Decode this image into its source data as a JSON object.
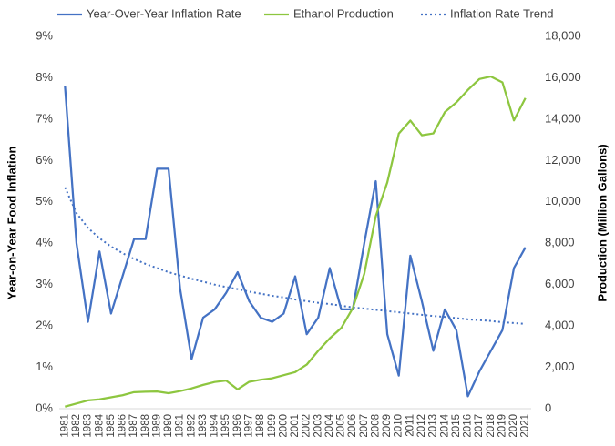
{
  "chart_data": {
    "type": "line",
    "y_label": "Year-on-Year Food Inflation",
    "y2_label": "Production (Million Gallons)",
    "categories": [
      "1981",
      "1982",
      "1983",
      "1984",
      "1985",
      "1986",
      "1987",
      "1988",
      "1989",
      "1990",
      "1991",
      "1992",
      "1993",
      "1994",
      "1995",
      "1996",
      "1997",
      "1998",
      "1999",
      "2000",
      "2001",
      "2002",
      "2003",
      "2004",
      "2005",
      "2006",
      "2007",
      "2008",
      "2009",
      "2010",
      "2011",
      "2012",
      "2013",
      "2014",
      "2015",
      "2016",
      "2017",
      "2018",
      "2019",
      "2020",
      "2021"
    ],
    "series": [
      {
        "name": "Year-Over-Year Inflation Rate",
        "color": "#4472c4",
        "line_style": "solid",
        "values": [
          7.8,
          4.0,
          2.1,
          3.8,
          2.3,
          3.2,
          4.1,
          4.1,
          5.8,
          5.8,
          2.9,
          1.2,
          2.2,
          2.4,
          2.8,
          3.3,
          2.6,
          2.2,
          2.1,
          2.3,
          3.2,
          1.8,
          2.2,
          3.4,
          2.4,
          2.4,
          4.0,
          5.5,
          1.8,
          0.8,
          3.7,
          2.6,
          1.4,
          2.4,
          1.9,
          0.3,
          0.9,
          1.4,
          1.9,
          3.4,
          3.9
        ]
      },
      {
        "name": "Ethanol Production",
        "color": "#8dc63f",
        "line_style": "solid",
        "axis": "y2",
        "values": [
          100,
          250,
          400,
          450,
          550,
          650,
          800,
          820,
          830,
          750,
          850,
          980,
          1150,
          1290,
          1360,
          930,
          1300,
          1400,
          1470,
          1620,
          1770,
          2130,
          2800,
          3400,
          3900,
          4860,
          6520,
          9310,
          10940,
          13300,
          13930,
          13220,
          13310,
          14340,
          14810,
          15410,
          15940,
          16060,
          15780,
          13940,
          15020
        ]
      },
      {
        "name": "Inflation Rate Trend",
        "color": "#4472c4",
        "line_style": "dotted",
        "values": [
          5.35,
          4.73,
          4.37,
          4.12,
          3.92,
          3.76,
          3.62,
          3.5,
          3.4,
          3.3,
          3.22,
          3.14,
          3.07,
          3.0,
          2.94,
          2.89,
          2.83,
          2.78,
          2.73,
          2.69,
          2.64,
          2.6,
          2.56,
          2.53,
          2.49,
          2.45,
          2.42,
          2.39,
          2.36,
          2.33,
          2.3,
          2.27,
          2.24,
          2.22,
          2.19,
          2.16,
          2.14,
          2.12,
          2.09,
          2.07,
          2.05
        ]
      }
    ],
    "ylim": [
      0,
      9
    ],
    "yticks": [
      {
        "value": 0,
        "label": "0%"
      },
      {
        "value": 1,
        "label": "1%"
      },
      {
        "value": 2,
        "label": "2%"
      },
      {
        "value": 3,
        "label": "3%"
      },
      {
        "value": 4,
        "label": "4%"
      },
      {
        "value": 5,
        "label": "5%"
      },
      {
        "value": 6,
        "label": "6%"
      },
      {
        "value": 7,
        "label": "7%"
      },
      {
        "value": 8,
        "label": "8%"
      },
      {
        "value": 9,
        "label": "9%"
      }
    ],
    "y2lim": [
      0,
      18000
    ],
    "y2ticks": [
      0,
      {
        "value": 2000,
        "label": "2,000"
      },
      {
        "value": 4000,
        "label": "4,000"
      },
      {
        "value": 6000,
        "label": "6,000"
      },
      {
        "value": 8000,
        "label": "8,000"
      },
      {
        "value": 10000,
        "label": "10,000"
      },
      {
        "value": 12000,
        "label": "12,000"
      },
      {
        "value": 14000,
        "label": "14,000"
      },
      {
        "value": 16000,
        "label": "16,000"
      },
      {
        "value": 18000,
        "label": "18,000"
      }
    ],
    "grid": false,
    "legend": "top"
  }
}
